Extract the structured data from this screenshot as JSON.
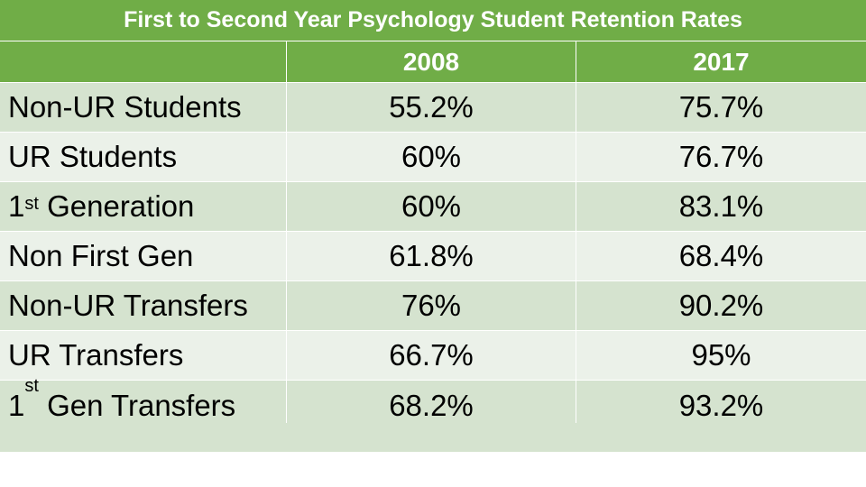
{
  "chart_data": {
    "type": "table",
    "title": "First to Second Year Psychology Student Retention Rates",
    "columns": [
      "2008",
      "2017"
    ],
    "rows": [
      {
        "label_base": "Non-UR Students",
        "label_sup": "",
        "label_rest": "",
        "values": [
          "55.2%",
          "75.7%"
        ]
      },
      {
        "label_base": "UR Students",
        "label_sup": "",
        "label_rest": "",
        "values": [
          "60%",
          "76.7%"
        ]
      },
      {
        "label_base": "1",
        "label_sup": "st",
        "label_rest": " Generation",
        "values": [
          "60%",
          "83.1%"
        ]
      },
      {
        "label_base": "Non First Gen",
        "label_sup": "",
        "label_rest": "",
        "values": [
          "61.8%",
          "68.4%"
        ]
      },
      {
        "label_base": "Non-UR Transfers",
        "label_sup": "",
        "label_rest": "",
        "values": [
          "76%",
          "90.2%"
        ]
      },
      {
        "label_base": "UR Transfers",
        "label_sup": "",
        "label_rest": "",
        "values": [
          "66.7%",
          "95%"
        ]
      },
      {
        "label_base": "1",
        "label_sup": "st",
        "label_rest": " Gen Transfers",
        "values": [
          "68.2%",
          "93.2%"
        ]
      }
    ]
  },
  "colors": {
    "header": "#70ad47",
    "row_dark": "#d5e3cf",
    "row_light": "#ebf1e9",
    "header_text": "#ffffff"
  }
}
